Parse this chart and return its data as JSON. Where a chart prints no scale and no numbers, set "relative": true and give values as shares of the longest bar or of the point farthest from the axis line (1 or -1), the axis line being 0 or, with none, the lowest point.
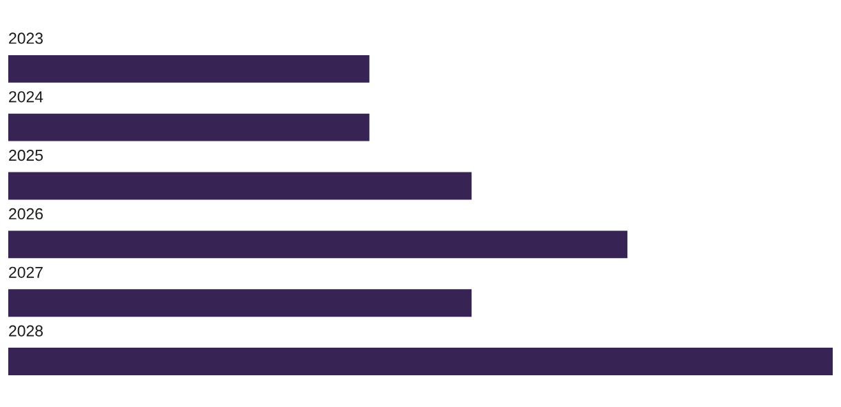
{
  "chart_data": {
    "type": "bar",
    "orientation": "horizontal",
    "relative": true,
    "categories": [
      "2023",
      "2024",
      "2025",
      "2026",
      "2027",
      "2028"
    ],
    "values": [
      0.438,
      0.438,
      0.562,
      0.751,
      0.562,
      1
    ],
    "color": "#372454"
  }
}
